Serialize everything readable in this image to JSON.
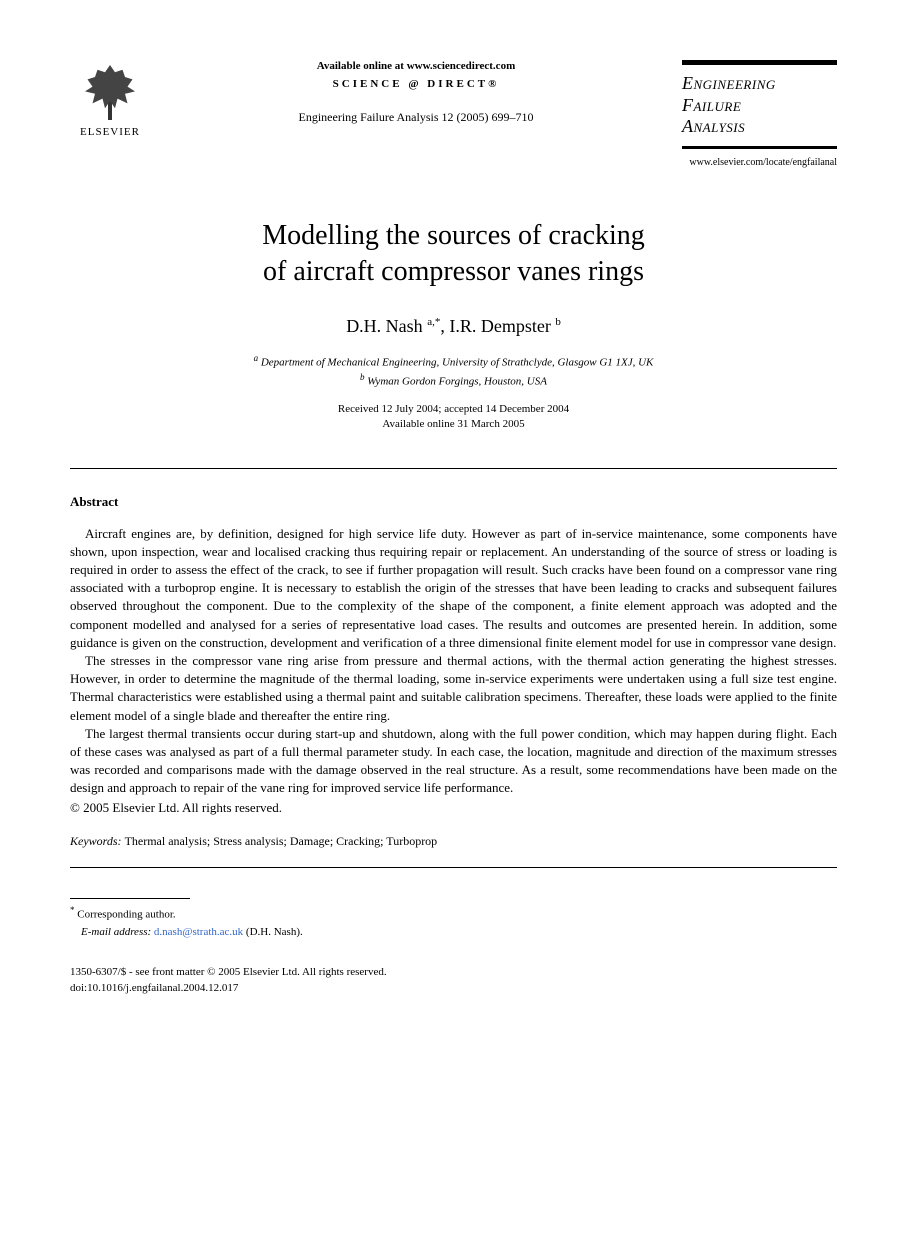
{
  "header": {
    "publisher": "ELSEVIER",
    "available_text": "Available online at www.sciencedirect.com",
    "science_direct": "SCIENCE @ DIRECT®",
    "citation": "Engineering Failure Analysis 12 (2005) 699–710",
    "journal_name_line1": "Engineering",
    "journal_name_line2": "Failure",
    "journal_name_line3": "Analysis",
    "journal_url": "www.elsevier.com/locate/engfailanal"
  },
  "article": {
    "title_line1": "Modelling the sources of cracking",
    "title_line2": "of aircraft compressor vanes rings",
    "authors": "D.H. Nash ",
    "author1_sup": "a,*",
    "authors_sep": ", I.R. Dempster ",
    "author2_sup": "b",
    "affiliation_a_sup": "a",
    "affiliation_a": " Department of Mechanical Engineering, University of Strathclyde, Glasgow G1 1XJ, UK",
    "affiliation_b_sup": "b",
    "affiliation_b": " Wyman Gordon Forgings, Houston, USA",
    "received": "Received 12 July 2004; accepted 14 December 2004",
    "available": "Available online 31 March 2005"
  },
  "abstract": {
    "heading": "Abstract",
    "para1": "Aircraft engines are, by definition, designed for high service life duty. However as part of in-service maintenance, some components have shown, upon inspection, wear and localised cracking thus requiring repair or replacement. An understanding of the source of stress or loading is required in order to assess the effect of the crack, to see if further propagation will result. Such cracks have been found on a compressor vane ring associated with a turboprop engine. It is necessary to establish the origin of the stresses that have been leading to cracks and subsequent failures observed throughout the component. Due to the complexity of the shape of the component, a finite element approach was adopted and the component modelled and analysed for a series of representative load cases. The results and outcomes are presented herein. In addition, some guidance is given on the construction, development and verification of a three dimensional finite element model for use in compressor vane design.",
    "para2": "The stresses in the compressor vane ring arise from pressure and thermal actions, with the thermal action generating the highest stresses. However, in order to determine the magnitude of the thermal loading, some in-service experiments were undertaken using a full size test engine. Thermal characteristics were established using a thermal paint and suitable calibration specimens. Thereafter, these loads were applied to the finite element model of a single blade and thereafter the entire ring.",
    "para3": "The largest thermal transients occur during start-up and shutdown, along with the full power condition, which may happen during flight. Each of these cases was analysed as part of a full thermal parameter study. In each case, the location, magnitude and direction of the maximum stresses was recorded and comparisons made with the damage observed in the real structure. As a result, some recommendations have been made on the design and approach to repair of the vane ring for improved service life performance.",
    "copyright": "© 2005 Elsevier Ltd. All rights reserved."
  },
  "keywords": {
    "label": "Keywords:  ",
    "text": "Thermal analysis; Stress analysis; Damage; Cracking; Turboprop"
  },
  "footnote": {
    "marker": "*",
    "corresponding": " Corresponding author.",
    "email_label": "E-mail address: ",
    "email": "d.nash@strath.ac.uk",
    "email_author": " (D.H. Nash)."
  },
  "footer": {
    "issn": "1350-6307/$ - see front matter © 2005 Elsevier Ltd. All rights reserved.",
    "doi": "doi:10.1016/j.engfailanal.2004.12.017"
  }
}
